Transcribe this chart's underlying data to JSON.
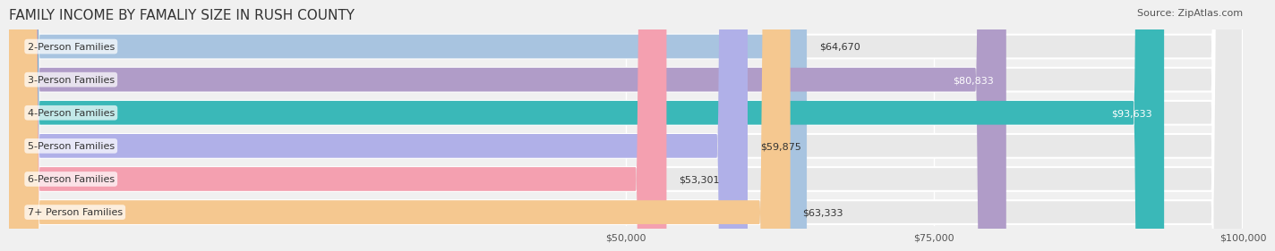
{
  "title": "FAMILY INCOME BY FAMALIY SIZE IN RUSH COUNTY",
  "source": "Source: ZipAtlas.com",
  "categories": [
    "2-Person Families",
    "3-Person Families",
    "4-Person Families",
    "5-Person Families",
    "6-Person Families",
    "7+ Person Families"
  ],
  "values": [
    64670,
    80833,
    93633,
    59875,
    53301,
    63333
  ],
  "bar_colors": [
    "#a8c4e0",
    "#b09cc8",
    "#3ab8b8",
    "#b0b0e8",
    "#f4a0b0",
    "#f5c890"
  ],
  "label_colors": [
    "#333333",
    "#ffffff",
    "#ffffff",
    "#333333",
    "#333333",
    "#333333"
  ],
  "x_max": 100000,
  "x_ticks": [
    50000,
    75000,
    100000
  ],
  "x_tick_labels": [
    "$50,000",
    "$75,000",
    "$100,000"
  ],
  "background_color": "#f0f0f0",
  "bar_bg_color": "#e8e8e8",
  "title_fontsize": 11,
  "source_fontsize": 8,
  "label_fontsize": 8,
  "value_fontsize": 8
}
